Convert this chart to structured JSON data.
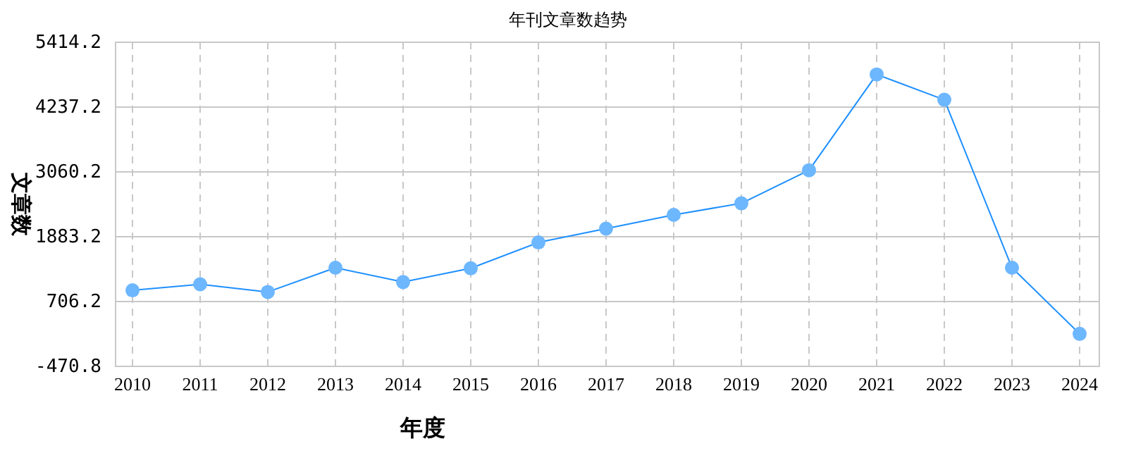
{
  "chart_data": {
    "type": "line",
    "title": "年刊文章数趋势",
    "xlabel": "年度",
    "ylabel": "文章数",
    "categories": [
      "2010",
      "2011",
      "2012",
      "2013",
      "2014",
      "2015",
      "2016",
      "2017",
      "2018",
      "2019",
      "2020",
      "2021",
      "2022",
      "2023",
      "2024"
    ],
    "series": [
      {
        "color": "#1e90ff",
        "values": [
          910,
          1020,
          880,
          1320,
          1060,
          1310,
          1780,
          2030,
          2280,
          2490,
          3090,
          4830,
          4370,
          1320,
          120
        ]
      }
    ],
    "ylim": [
      -470.8,
      5414.2
    ],
    "yticks": [
      -470.8,
      706.2,
      1883.2,
      3060.2,
      4237.2,
      5414.2
    ],
    "grid": true,
    "marker": "circle",
    "line_style": "solid"
  }
}
